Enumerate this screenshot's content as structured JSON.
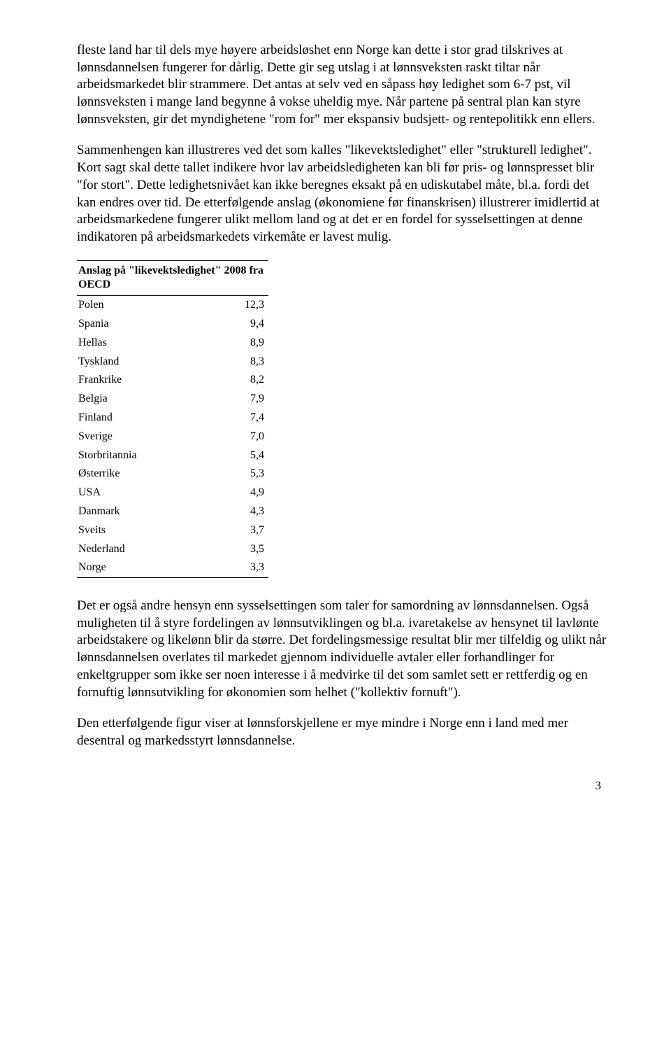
{
  "paragraphs": {
    "p1": "fleste land har til dels mye høyere arbeidsløshet enn Norge kan dette i stor grad tilskrives at lønnsdannelsen fungerer for dårlig. Dette gir seg utslag i at lønnsveksten raskt tiltar når arbeidsmarkedet blir strammere. Det antas at selv ved en såpass høy ledighet som 6-7 pst, vil lønnsveksten i mange land begynne å vokse uheldig mye. Når partene på sentral plan kan styre lønnsveksten, gir det myndighetene \"rom for\" mer ekspansiv budsjett- og rentepolitikk enn ellers.",
    "p2": "Sammenhengen kan illustreres ved det som kalles \"likevektsledighet\" eller \"strukturell ledighet\". Kort sagt skal dette tallet indikere hvor lav arbeidsledigheten kan bli før pris- og lønnspresset blir \"for stort\". Dette ledighetsnivået kan ikke beregnes eksakt på en udiskutabel måte, bl.a. fordi det kan endres over tid. De etterfølgende anslag (økonomiene før finanskrisen) illustrerer imidlertid at arbeidsmarkedene fungerer ulikt mellom land og at det er en fordel for sysselsettingen at denne indikatoren på arbeidsmarkedets virkemåte er lavest mulig.",
    "p3": "Det er også andre hensyn enn sysselsettingen som taler for samordning av lønnsdannelsen. Også muligheten til å styre fordelingen av lønnsutviklingen og bl.a. ivaretakelse av hensynet til lavlønte arbeidstakere og likelønn blir da større. Det fordelingsmessige resultat blir mer tilfeldig og ulikt når lønnsdannelsen overlates til markedet gjennom individuelle avtaler eller forhandlinger for enkeltgrupper som ikke ser noen interesse i å medvirke til det som samlet sett er rettferdig og en fornuftig lønnsutvikling for økonomien som helhet (\"kollektiv fornuft\").",
    "p4": "Den etterfølgende figur viser at lønnsforskjellene er mye mindre i Norge enn i land med mer desentral og markedsstyrt lønnsdannelse."
  },
  "table": {
    "title": "Anslag på \"likevektsledighet\" 2008 fra OECD",
    "rows": [
      {
        "country": "Polen",
        "value": "12,3"
      },
      {
        "country": "Spania",
        "value": "9,4"
      },
      {
        "country": "Hellas",
        "value": "8,9"
      },
      {
        "country": "Tyskland",
        "value": "8,3"
      },
      {
        "country": "Frankrike",
        "value": "8,2"
      },
      {
        "country": "Belgia",
        "value": "7,9"
      },
      {
        "country": "Finland",
        "value": "7,4"
      },
      {
        "country": "Sverige",
        "value": "7,0"
      },
      {
        "country": "Storbritannia",
        "value": "5,4"
      },
      {
        "country": "Østerrike",
        "value": "5,3"
      },
      {
        "country": "USA",
        "value": "4,9"
      },
      {
        "country": "Danmark",
        "value": "4,3"
      },
      {
        "country": "Sveits",
        "value": "3,7"
      },
      {
        "country": "Nederland",
        "value": "3,5"
      },
      {
        "country": "Norge",
        "value": "3,3"
      }
    ]
  },
  "page_number": "3"
}
